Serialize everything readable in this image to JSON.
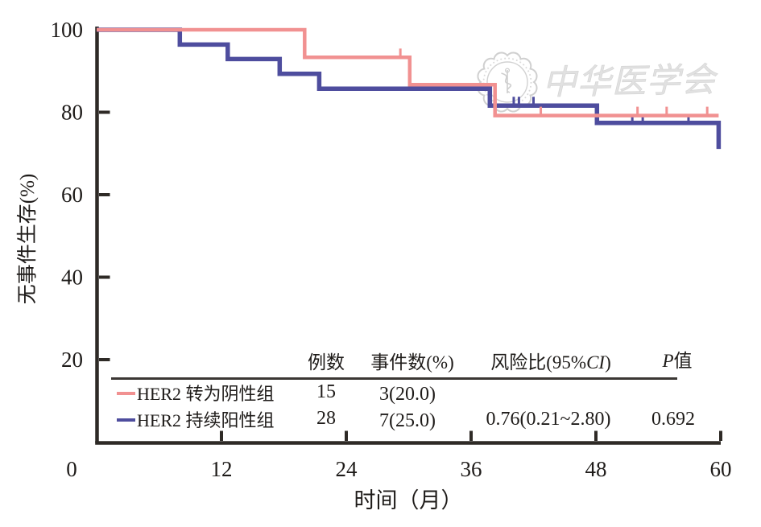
{
  "watermark": {
    "text": "中华医学会"
  },
  "chart_data": {
    "type": "line",
    "subtype": "kaplan-meier-step",
    "title": "",
    "xlabel": "时间（月）",
    "ylabel": "无事件生存(%)",
    "xlim": [
      0,
      60
    ],
    "ylim": [
      0,
      100
    ],
    "xticks": [
      0,
      12,
      24,
      36,
      48,
      60
    ],
    "yticks": [
      100,
      80,
      60,
      40,
      20
    ],
    "grid": false,
    "legend_position": "inset-table-bottom",
    "axis_color": "#2e2a26",
    "text_color": "#1e1b19",
    "series": [
      {
        "name": "HER2 转为阴性组",
        "color": "#F19191",
        "line_width": 4.5,
        "n": 15,
        "events_pct": "3(20.0)",
        "steps": [
          [
            0,
            100
          ],
          [
            20,
            93.3
          ],
          [
            30.1,
            86.7
          ],
          [
            38.3,
            79.2
          ]
        ],
        "end_time": 59.8,
        "censor_times": [
          29.2,
          42.7,
          52.0,
          54.8,
          58.7
        ]
      },
      {
        "name": "HER2 持续阳性组",
        "color": "#4E4D9E",
        "line_width": 5.5,
        "n": 28,
        "events_pct": "7(25.0)",
        "hazard_ratio": "0.76(0.21~2.80)",
        "p_value": "0.692",
        "steps": [
          [
            0,
            100
          ],
          [
            8,
            96.4
          ],
          [
            12.6,
            92.9
          ],
          [
            17.6,
            89.3
          ],
          [
            21.4,
            85.7
          ],
          [
            37.8,
            81.6
          ],
          [
            48.1,
            77.4
          ],
          [
            59.8,
            71.1
          ]
        ],
        "end_time": 59.8,
        "censor_times": [
          40.1,
          40.6,
          42.0,
          51.5,
          52.5,
          56.9
        ]
      }
    ]
  },
  "table": {
    "headers": {
      "n": "例数",
      "events": "事件数(%)",
      "hr_prefix": "风险比(95%",
      "hr_italic": "CI",
      "hr_suffix": ")",
      "p_italic": "P",
      "p_suffix": "值"
    },
    "rows": [
      {
        "label": "HER2 转为阴性组",
        "n": "15",
        "events": "3(20.0)",
        "hr": "",
        "p": ""
      },
      {
        "label": "HER2 持续阳性组",
        "n": "28",
        "events": "7(25.0)",
        "hr": "0.76(0.21~2.80)",
        "p": "0.692"
      }
    ]
  }
}
